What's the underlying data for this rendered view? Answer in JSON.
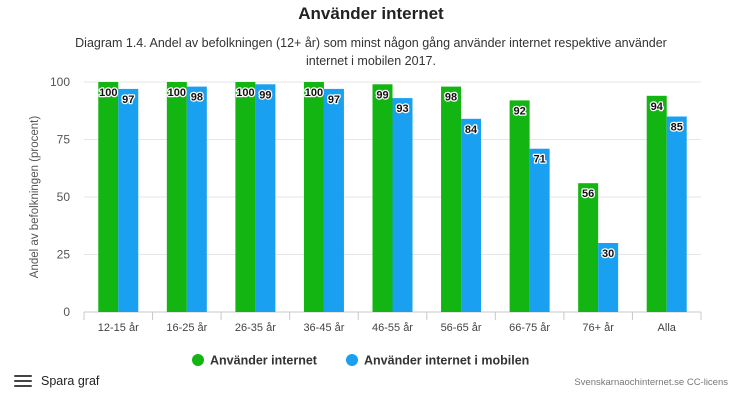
{
  "header": {
    "title": "Använder internet",
    "subtitle_line1": "Diagram 1.4. Andel av befolkningen (12+ år) som minst någon gång använder internet respektive använder",
    "subtitle_line2": "internet i mobilen 2017."
  },
  "footer": {
    "menu_label": "Spara graf",
    "credit": "Svenskarnaochinternet.se CC-licens"
  },
  "chart_data": {
    "type": "bar",
    "ylabel": "Andel av befolkningen (procent)",
    "xlabel": "",
    "ylim": [
      0,
      100
    ],
    "yticks": [
      0,
      25,
      50,
      75,
      100
    ],
    "grid": true,
    "legend_position": "bottom-center",
    "categories": [
      "12-15 år",
      "16-25 år",
      "26-35 år",
      "36-45 år",
      "46-55 år",
      "56-65 år",
      "66-75 år",
      "76+ år",
      "Alla"
    ],
    "series": [
      {
        "name": "Använder internet",
        "color": "#12b512",
        "values": [
          100,
          100,
          100,
          100,
          99,
          98,
          92,
          56,
          94
        ]
      },
      {
        "name": "Använder internet i mobilen",
        "color": "#1aa0f0",
        "values": [
          97,
          98,
          99,
          97,
          93,
          84,
          71,
          30,
          85
        ]
      }
    ]
  }
}
